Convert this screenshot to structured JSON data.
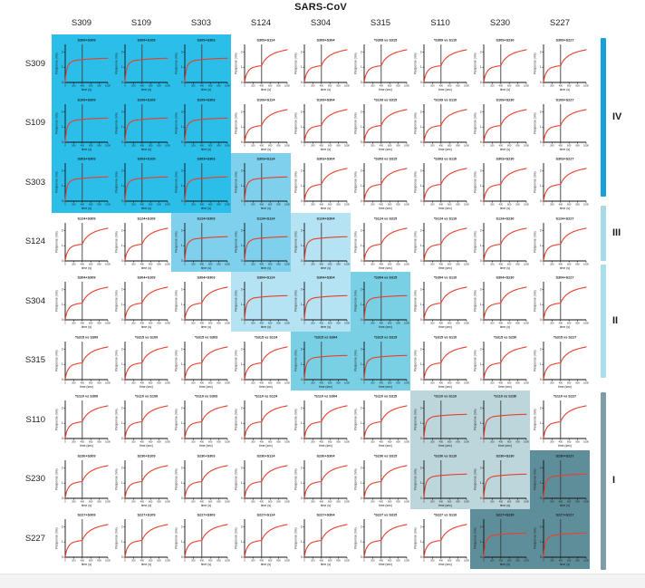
{
  "header": {
    "title": "SARS-CoV"
  },
  "antibodies": [
    "S309",
    "S109",
    "S303",
    "S124",
    "S304",
    "S315",
    "S110",
    "S230",
    "S227"
  ],
  "groups": [
    {
      "numeral": "IV",
      "color": "#169fd9",
      "rows": [
        0,
        2
      ]
    },
    {
      "numeral": "III",
      "color": "#a6dae9",
      "rows": [
        3,
        3
      ]
    },
    {
      "numeral": "II",
      "color": "#a8deee",
      "rows": [
        4,
        5
      ]
    },
    {
      "numeral": "I",
      "color": "#7f9da9",
      "rows": [
        6,
        8
      ]
    }
  ],
  "chart_data": {
    "type": "line",
    "layout": "9x9 matrix of biolayer-interferometry competition sensorgrams; rows = first antibody, columns = second antibody",
    "title": "SARS-CoV",
    "xlabel_plain": "time (s)",
    "xlabel_vs": "time (sec)",
    "ylabel": "Response (nm)",
    "x_ticks": [
      0,
      200,
      400,
      600,
      800,
      1000
    ],
    "y_ticks": [
      0,
      1,
      2
    ],
    "xlim": [
      0,
      1000
    ],
    "ylim": [
      0,
      2.5
    ],
    "injection_time": 400,
    "curve_color": "#e8402d",
    "injection_line_color": "#3f3f3f",
    "curves": {
      "blocked": [
        [
          0,
          0
        ],
        [
          10,
          0.35
        ],
        [
          25,
          0.7
        ],
        [
          50,
          1.0
        ],
        [
          75,
          1.15
        ],
        [
          100,
          1.25
        ],
        [
          150,
          1.36
        ],
        [
          200,
          1.42
        ],
        [
          300,
          1.47
        ],
        [
          400,
          1.5
        ],
        [
          600,
          1.54
        ],
        [
          800,
          1.57
        ],
        [
          1000,
          1.59
        ]
      ],
      "binding": [
        [
          0,
          0
        ],
        [
          10,
          0.18
        ],
        [
          25,
          0.38
        ],
        [
          50,
          0.58
        ],
        [
          100,
          0.8
        ],
        [
          150,
          0.92
        ],
        [
          200,
          0.99
        ],
        [
          300,
          1.06
        ],
        [
          400,
          1.1
        ],
        [
          430,
          1.28
        ],
        [
          470,
          1.45
        ],
        [
          520,
          1.6
        ],
        [
          600,
          1.78
        ],
        [
          700,
          1.92
        ],
        [
          800,
          2.02
        ],
        [
          900,
          2.09
        ],
        [
          1000,
          2.15
        ]
      ]
    },
    "bg_code_meaning": {
      "0": "no competition (white)",
      "1": "site IV block (S309/S109/S303)",
      "2": "S303-S124 cross-competition",
      "3": "S124-S304 cross-competition",
      "4": "site II block (S304/S315)",
      "5": "site I block (S110/S230)",
      "6": "S230-S227 cross-competition"
    },
    "block_colors": {
      "1": "#2bbee9",
      "2": "#7ed0ec",
      "3": "#b5e3f3",
      "4": "#79d0e5",
      "5": "#bdd6db",
      "6": "#5f8e9b"
    },
    "cell_bg": [
      [
        1,
        1,
        1,
        0,
        0,
        0,
        0,
        0,
        0
      ],
      [
        1,
        1,
        1,
        0,
        0,
        0,
        0,
        0,
        0
      ],
      [
        1,
        1,
        1,
        2,
        0,
        0,
        0,
        0,
        0
      ],
      [
        0,
        0,
        2,
        2,
        3,
        0,
        0,
        0,
        0
      ],
      [
        0,
        0,
        0,
        3,
        3,
        4,
        0,
        0,
        0
      ],
      [
        0,
        0,
        0,
        0,
        4,
        4,
        0,
        0,
        0
      ],
      [
        0,
        0,
        0,
        0,
        0,
        0,
        5,
        5,
        0
      ],
      [
        0,
        0,
        0,
        0,
        0,
        0,
        5,
        5,
        6
      ],
      [
        0,
        0,
        0,
        0,
        0,
        0,
        0,
        6,
        6
      ]
    ],
    "cell_titles": [
      [
        "S309+S309",
        "S309+S109",
        "S309+S303",
        "S309+S124",
        "S309+S304",
        "*S309 vs S315",
        "*S309 vs S110",
        "S309+S230",
        "S309+S227"
      ],
      [
        "S109+S309",
        "S109+S109",
        "S109+S303",
        "S109+S124",
        "S109+S304",
        "*S109 vs S315",
        "*S109 vs S110",
        "S109+S230",
        "S109+S227"
      ],
      [
        "S303+S309",
        "S303+S109",
        "S303+S303",
        "S303+S124",
        "S303+S304",
        "*S303 vs S315",
        "*S303 vs S110",
        "S303+S230",
        "S303+S227"
      ],
      [
        "S124+S309",
        "S124+S109",
        "S124+S303",
        "S124+S124",
        "S124+S304",
        "*S124 vs S315",
        "*S124 vs S110",
        "S124+S230",
        "S124+S227"
      ],
      [
        "S304+S309",
        "S304+S109",
        "S304+S303",
        "S304+S124",
        "S304+S304",
        "*S304 vs S315",
        "*S304 vs S110",
        "S304+S230",
        "S304+S227"
      ],
      [
        "*S315 vs S309",
        "*S315 vs S109",
        "*S315 vs S303",
        "*S315 vs S124",
        "*S315 vs S304",
        "*S315 vs S315",
        "*S315 vs S110",
        "*S315 vs S230",
        "*S315 vs S227"
      ],
      [
        "*S110 vs S309",
        "*S110 vs S109",
        "*S110 vs S303",
        "*S110 vs S124",
        "*S110 vs S304",
        "*S110 vs S315",
        "*S110 vs S110",
        "*S110 vs S230",
        "*S110 vs S227"
      ],
      [
        "S230+S309",
        "S230+S109",
        "S230+S303",
        "S230+S124",
        "S230+S304",
        "*S230 vs S315",
        "*S230 vs S110",
        "S230+S230",
        "S230+S227"
      ],
      [
        "S227+S309",
        "S227+S109",
        "S227+S303",
        "S227+S124",
        "S227+S304",
        "*S227 vs S315",
        "*S227 vs S110",
        "S227+S230",
        "S227+S227"
      ]
    ]
  }
}
